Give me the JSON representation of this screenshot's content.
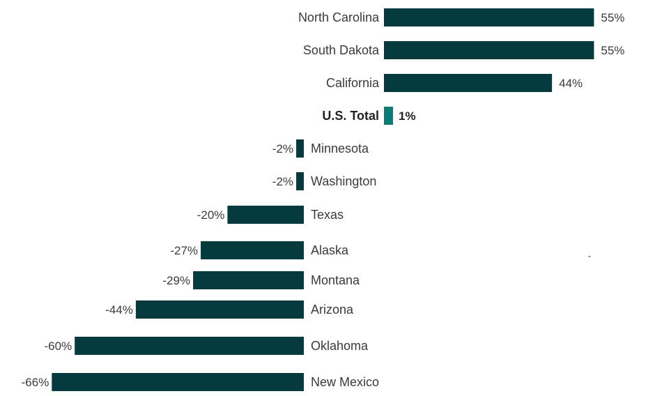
{
  "chart_data": {
    "type": "bar",
    "orientation": "horizontal",
    "categories": [
      "North Carolina",
      "South Dakota",
      "California",
      "U.S. Total",
      "Minnesota",
      "Washington",
      "Texas",
      "Alaska",
      "Montana",
      "Arizona",
      "Oklahoma",
      "New Mexico"
    ],
    "values": [
      55,
      55,
      44,
      1,
      -2,
      -2,
      -20,
      -27,
      -29,
      -44,
      -60,
      -66
    ],
    "data_labels": [
      "55%",
      "55%",
      "44%",
      "1%",
      "-2%",
      "-2%",
      "-20%",
      "-27%",
      "-29%",
      "-44%",
      "-60%",
      "-66%"
    ],
    "highlight_category": "U.S. Total",
    "xlim": [
      -66,
      55
    ],
    "unit": "%",
    "grid": false,
    "legend": "none",
    "stray_mark": "-",
    "colors": {
      "bar": "#053b3e",
      "highlight": "#0a7d78",
      "label": "#3a3a3a"
    }
  }
}
